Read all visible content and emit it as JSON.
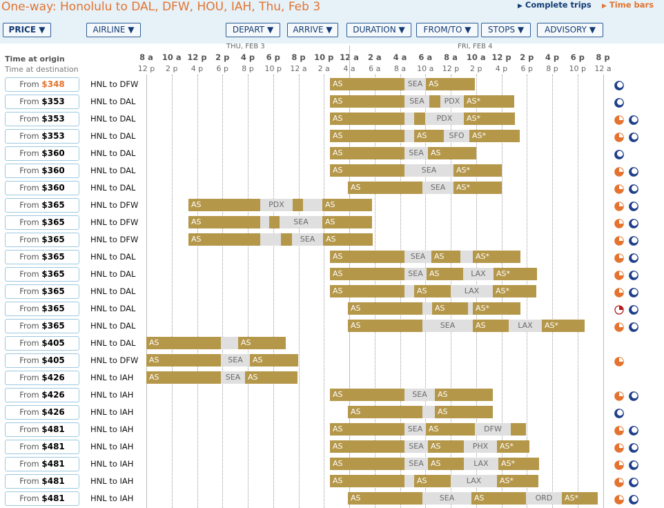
{
  "title": "One-way: Honolulu to DAL, DFW, HOU, IAH, Thu, Feb 3",
  "links": {
    "complete_trips": "Complete trips",
    "time_bars": "Time bars"
  },
  "sort_buttons": [
    {
      "label": "PRICE ▼",
      "active": true
    },
    {
      "label": "AIRLINE ▼",
      "active": false
    },
    {
      "label": "DEPART ▼",
      "active": false
    },
    {
      "label": "ARRIVE ▼",
      "active": false
    },
    {
      "label": "DURATION ▼",
      "active": false
    },
    {
      "label": "FROM/TO ▼",
      "active": false
    },
    {
      "label": "STOPS ▼",
      "active": false
    },
    {
      "label": "ADVISORY ▼",
      "active": false
    }
  ],
  "axis": {
    "label_origin": "Time at origin",
    "label_destination": "Time at destination",
    "day1": "THU, FEB 3",
    "day2": "FRI, FEB 4",
    "origin_ticks": [
      "8 a",
      "10 a",
      "12 p",
      "2 p",
      "4 p",
      "6 p",
      "8 p",
      "10 p",
      "12 a",
      "2 a",
      "4 a",
      "6 a",
      "8 a",
      "10 a",
      "12 p",
      "2 p",
      "4 p",
      "6 p",
      "8 p"
    ],
    "destination_ticks": [
      "12 p",
      "2 p",
      "4 p",
      "6 p",
      "8 p",
      "10 p",
      "12 a",
      "2 a",
      "4 a",
      "6 a",
      "8 a",
      "10 a",
      "12 p",
      "2 p",
      "4 p",
      "6 p",
      "8 p",
      "10 p",
      "12 a"
    ]
  },
  "colors": {
    "accent": "#e3732f",
    "flight_bar": "#b5974a",
    "layover_bar": "#dfdfdf",
    "link_blue": "#123a73",
    "header_bg": "#e6f1f8"
  },
  "rows": [
    {
      "price_prefix": "From",
      "price": "$348",
      "lowest": true,
      "route": "HNL to DFW",
      "segments": [
        [
          "f",
          478,
          586,
          "AS"
        ],
        [
          "l",
          586,
          617,
          "SEA"
        ],
        [
          "f",
          617,
          688,
          "AS"
        ]
      ],
      "icons": [
        "moon"
      ]
    },
    {
      "price_prefix": "From",
      "price": "$353",
      "route": "HNL to DAL",
      "segments": [
        [
          "f",
          478,
          586,
          "AS"
        ],
        [
          "l",
          586,
          622,
          "SEA"
        ],
        [
          "f",
          622,
          638,
          ""
        ],
        [
          "l",
          638,
          672,
          "PDX"
        ],
        [
          "f",
          672,
          745,
          "AS*"
        ]
      ],
      "icons": [
        "moon"
      ]
    },
    {
      "price_prefix": "From",
      "price": "$353",
      "route": "HNL to DAL",
      "segments": [
        [
          "f",
          478,
          586,
          "AS"
        ],
        [
          "l",
          586,
          600,
          ""
        ],
        [
          "f",
          600,
          616,
          ""
        ],
        [
          "l",
          616,
          672,
          "PDX"
        ],
        [
          "f",
          672,
          746,
          "AS*"
        ]
      ],
      "icons": [
        "clock",
        "moon"
      ]
    },
    {
      "price_prefix": "From",
      "price": "$353",
      "route": "HNL to DAL",
      "segments": [
        [
          "f",
          478,
          586,
          "AS"
        ],
        [
          "l",
          586,
          600,
          ""
        ],
        [
          "f",
          600,
          643,
          "AS"
        ],
        [
          "l",
          643,
          680,
          "SFO"
        ],
        [
          "f",
          680,
          753,
          "AS*"
        ]
      ],
      "icons": [
        "clock",
        "moon"
      ]
    },
    {
      "price_prefix": "From",
      "price": "$360",
      "route": "HNL to DAL",
      "segments": [
        [
          "f",
          478,
          586,
          "AS"
        ],
        [
          "l",
          586,
          620,
          "SEA"
        ],
        [
          "f",
          620,
          690,
          "AS"
        ]
      ],
      "icons": [
        "moon"
      ]
    },
    {
      "price_prefix": "From",
      "price": "$360",
      "route": "HNL to DAL",
      "segments": [
        [
          "f",
          478,
          586,
          "AS"
        ],
        [
          "l",
          586,
          657,
          "SEA"
        ],
        [
          "f",
          657,
          727,
          "AS*"
        ]
      ],
      "icons": [
        "clock",
        "moon"
      ]
    },
    {
      "price_prefix": "From",
      "price": "$360",
      "route": "HNL to DAL",
      "segments": [
        [
          "f",
          504,
          612,
          "AS"
        ],
        [
          "l",
          612,
          657,
          "SEA"
        ],
        [
          "f",
          657,
          727,
          "AS*"
        ]
      ],
      "icons": [
        "clock",
        "moon"
      ]
    },
    {
      "price_prefix": "From",
      "price": "$365",
      "route": "HNL to DFW",
      "segments": [
        [
          "f",
          273,
          377,
          "AS"
        ],
        [
          "l",
          377,
          424,
          "PDX"
        ],
        [
          "f",
          424,
          439,
          ""
        ],
        [
          "l",
          439,
          467,
          ""
        ],
        [
          "f",
          467,
          539,
          "AS"
        ]
      ],
      "icons": [
        "clock",
        "moon"
      ]
    },
    {
      "price_prefix": "From",
      "price": "$365",
      "route": "HNL to DFW",
      "segments": [
        [
          "f",
          273,
          377,
          "AS"
        ],
        [
          "l",
          377,
          390,
          ""
        ],
        [
          "f",
          390,
          405,
          ""
        ],
        [
          "l",
          405,
          467,
          "SEA"
        ],
        [
          "f",
          467,
          539,
          "AS"
        ]
      ],
      "icons": [
        "clock",
        "moon"
      ]
    },
    {
      "price_prefix": "From",
      "price": "$365",
      "route": "HNL to DFW",
      "segments": [
        [
          "f",
          273,
          377,
          "AS"
        ],
        [
          "l",
          377,
          407,
          ""
        ],
        [
          "f",
          407,
          423,
          ""
        ],
        [
          "l",
          423,
          468,
          "SEA"
        ],
        [
          "f",
          468,
          540,
          "AS"
        ]
      ],
      "icons": [
        "clock",
        "moon"
      ]
    },
    {
      "price_prefix": "From",
      "price": "$365",
      "route": "HNL to DAL",
      "segments": [
        [
          "f",
          478,
          586,
          "AS"
        ],
        [
          "l",
          586,
          625,
          "SEA"
        ],
        [
          "f",
          625,
          667,
          "AS"
        ],
        [
          "l",
          667,
          685,
          ""
        ],
        [
          "f",
          685,
          754,
          "AS*"
        ]
      ],
      "icons": [
        "clock",
        "moon"
      ]
    },
    {
      "price_prefix": "From",
      "price": "$365",
      "route": "HNL to DAL",
      "segments": [
        [
          "f",
          478,
          586,
          "AS"
        ],
        [
          "l",
          586,
          618,
          "SEA"
        ],
        [
          "f",
          618,
          671,
          "AS"
        ],
        [
          "l",
          671,
          715,
          "LAX"
        ],
        [
          "f",
          715,
          778,
          "AS*"
        ]
      ],
      "icons": [
        "clock",
        "moon"
      ]
    },
    {
      "price_prefix": "From",
      "price": "$365",
      "route": "HNL to DAL",
      "segments": [
        [
          "f",
          478,
          586,
          "AS"
        ],
        [
          "l",
          586,
          600,
          ""
        ],
        [
          "f",
          600,
          653,
          "AS"
        ],
        [
          "l",
          653,
          714,
          "LAX"
        ],
        [
          "f",
          714,
          777,
          "AS*"
        ]
      ],
      "icons": [
        "clock",
        "moon"
      ]
    },
    {
      "price_prefix": "From",
      "price": "$365",
      "route": "HNL to DAL",
      "segments": [
        [
          "f",
          504,
          612,
          "AS"
        ],
        [
          "l",
          612,
          626,
          ""
        ],
        [
          "f",
          626,
          678,
          "AS"
        ],
        [
          "l",
          678,
          685,
          ""
        ],
        [
          "f",
          685,
          754,
          "AS*"
        ]
      ],
      "icons": [
        "clock-red",
        "moon"
      ]
    },
    {
      "price_prefix": "From",
      "price": "$365",
      "route": "HNL to DAL",
      "segments": [
        [
          "f",
          504,
          612,
          "AS"
        ],
        [
          "l",
          612,
          685,
          "SEA"
        ],
        [
          "f",
          685,
          737,
          "AS"
        ],
        [
          "l",
          737,
          785,
          "LAX"
        ],
        [
          "f",
          785,
          847,
          "AS*"
        ]
      ],
      "icons": [
        "clock",
        "moon"
      ]
    },
    {
      "price_prefix": "From",
      "price": "$405",
      "route": "HNL to DAL",
      "segments": [
        [
          "f",
          212,
          320,
          "AS"
        ],
        [
          "l",
          320,
          345,
          ""
        ],
        [
          "f",
          345,
          414,
          "AS"
        ]
      ],
      "icons": []
    },
    {
      "price_prefix": "From",
      "price": "$405",
      "route": "HNL to DFW",
      "segments": [
        [
          "f",
          212,
          320,
          "AS"
        ],
        [
          "l",
          320,
          362,
          "SEA"
        ],
        [
          "f",
          362,
          432,
          "AS"
        ]
      ],
      "icons": [
        "clock"
      ]
    },
    {
      "price_prefix": "From",
      "price": "$426",
      "route": "HNL to IAH",
      "segments": [
        [
          "f",
          212,
          320,
          "AS"
        ],
        [
          "l",
          320,
          355,
          "SEA"
        ],
        [
          "f",
          355,
          431,
          "AS"
        ]
      ],
      "icons": []
    },
    {
      "price_prefix": "From",
      "price": "$426",
      "route": "HNL to IAH",
      "segments": [
        [
          "f",
          478,
          586,
          "AS"
        ],
        [
          "l",
          586,
          630,
          "SEA"
        ],
        [
          "f",
          630,
          714,
          "AS"
        ]
      ],
      "icons": [
        "clock",
        "moon"
      ]
    },
    {
      "price_prefix": "From",
      "price": "$426",
      "route": "HNL to IAH",
      "segments": [
        [
          "f",
          504,
          612,
          "AS"
        ],
        [
          "l",
          612,
          630,
          ""
        ],
        [
          "f",
          630,
          714,
          "AS"
        ]
      ],
      "icons": [
        "moon"
      ]
    },
    {
      "price_prefix": "From",
      "price": "$481",
      "route": "HNL to IAH",
      "segments": [
        [
          "f",
          478,
          586,
          "AS"
        ],
        [
          "l",
          586,
          617,
          "SEA"
        ],
        [
          "f",
          617,
          688,
          "AS"
        ],
        [
          "l",
          688,
          740,
          "DFW"
        ],
        [
          "f",
          740,
          762,
          ""
        ]
      ],
      "icons": [
        "clock",
        "moon"
      ]
    },
    {
      "price_prefix": "From",
      "price": "$481",
      "route": "HNL to IAH",
      "segments": [
        [
          "f",
          478,
          586,
          "AS"
        ],
        [
          "l",
          586,
          620,
          "SEA"
        ],
        [
          "f",
          620,
          672,
          "AS"
        ],
        [
          "l",
          672,
          720,
          "PHX"
        ],
        [
          "f",
          720,
          767,
          "AS*"
        ]
      ],
      "icons": [
        "clock",
        "moon"
      ]
    },
    {
      "price_prefix": "From",
      "price": "$481",
      "route": "HNL to IAH",
      "segments": [
        [
          "f",
          478,
          586,
          "AS"
        ],
        [
          "l",
          586,
          620,
          "SEA"
        ],
        [
          "f",
          620,
          672,
          "AS"
        ],
        [
          "l",
          672,
          722,
          "LAX"
        ],
        [
          "f",
          722,
          781,
          "AS*"
        ]
      ],
      "icons": [
        "clock",
        "moon"
      ]
    },
    {
      "price_prefix": "From",
      "price": "$481",
      "route": "HNL to IAH",
      "segments": [
        [
          "f",
          478,
          586,
          "AS"
        ],
        [
          "l",
          586,
          600,
          ""
        ],
        [
          "f",
          600,
          653,
          "AS"
        ],
        [
          "l",
          653,
          720,
          "LAX"
        ],
        [
          "f",
          720,
          780,
          "AS*"
        ]
      ],
      "icons": [
        "clock",
        "moon"
      ]
    },
    {
      "price_prefix": "From",
      "price": "$481",
      "route": "HNL to IAH",
      "segments": [
        [
          "f",
          504,
          612,
          "AS"
        ],
        [
          "l",
          612,
          683,
          "SEA"
        ],
        [
          "f",
          683,
          762,
          "AS"
        ],
        [
          "l",
          762,
          814,
          "ORD"
        ],
        [
          "f",
          814,
          866,
          "AS*"
        ]
      ],
      "icons": [
        "clock",
        "moon"
      ]
    }
  ]
}
